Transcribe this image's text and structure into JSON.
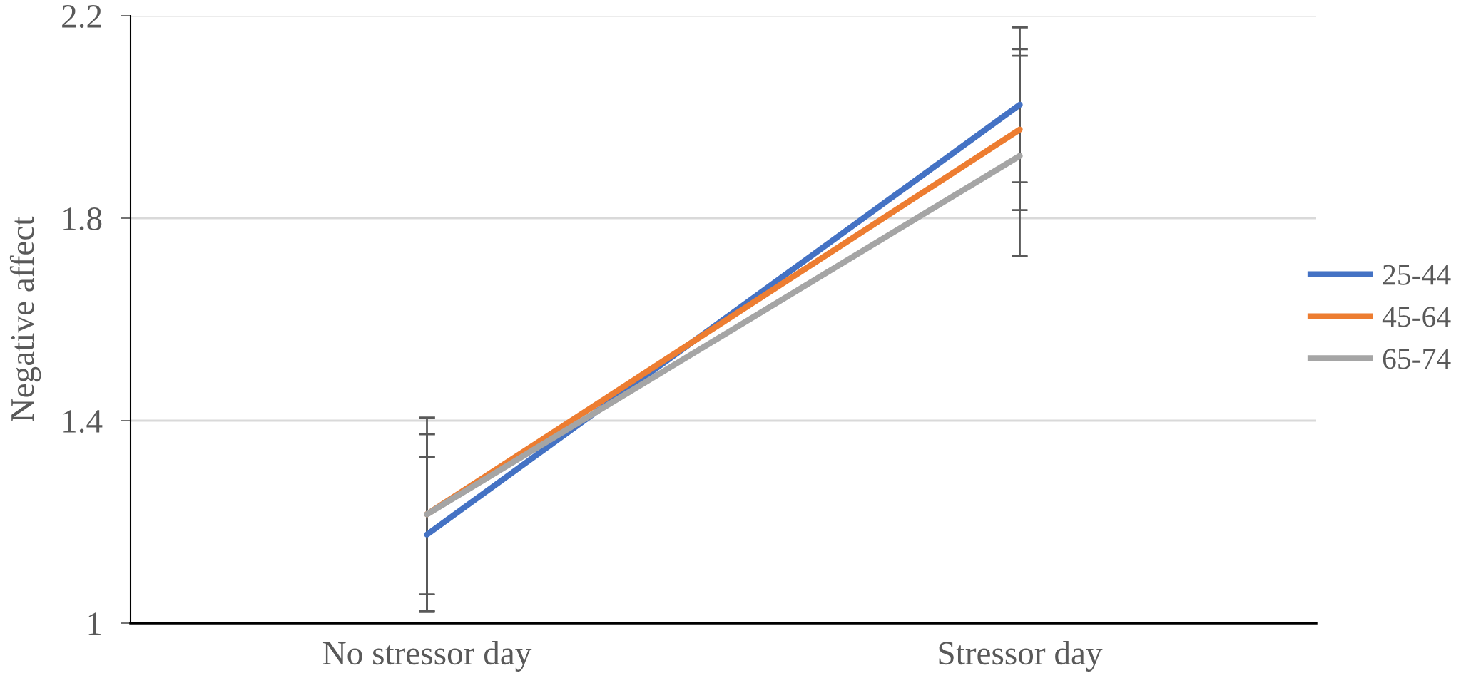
{
  "chart_data": {
    "type": "line",
    "ylabel": "Negative affect",
    "categories": [
      "No stressor day",
      "Stressor day"
    ],
    "series": [
      {
        "name": "25-44",
        "color": "#4472c4",
        "values": [
          1.175,
          2.024
        ],
        "errors": [
          0.153,
          0.153
        ]
      },
      {
        "name": "45-64",
        "color": "#ed7d31",
        "values": [
          1.215,
          1.975
        ],
        "errors": [
          0.158,
          0.159
        ]
      },
      {
        "name": "65-74",
        "color": "#a5a5a5",
        "values": [
          1.215,
          1.923
        ],
        "errors": [
          0.191,
          0.198
        ]
      }
    ],
    "ylim": [
      1,
      2.2
    ],
    "yticks": [
      1,
      1.4,
      1.8,
      2.2
    ],
    "grid": "y",
    "legend": "right",
    "marker": "none",
    "line_style": "solid"
  }
}
